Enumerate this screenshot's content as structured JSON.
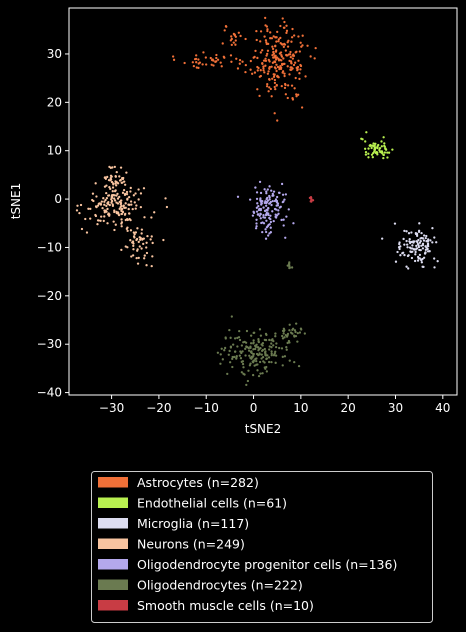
{
  "chart_data": {
    "type": "scatter",
    "xlabel": "tSNE2",
    "ylabel": "tSNE1",
    "xlim": [
      -39,
      43
    ],
    "ylim": [
      -40.5,
      39.5
    ],
    "xticks": [
      -30,
      -20,
      -10,
      0,
      10,
      20,
      30,
      40
    ],
    "yticks": [
      -40,
      -30,
      -20,
      -10,
      0,
      10,
      20,
      30
    ],
    "grid": false,
    "background": "#000000",
    "legend_position": "below",
    "series": [
      {
        "name": "Astrocytes (n=282)",
        "color": "#f07038",
        "n": 282,
        "clusters": [
          {
            "cx": 5.5,
            "cy": 28.5,
            "sx": 3.2,
            "sy": 3.8,
            "share": 0.8
          },
          {
            "cx": -8.5,
            "cy": 28.5,
            "sx": 3.5,
            "sy": 0.8,
            "share": 0.14
          },
          {
            "cx": -4.5,
            "cy": 33.5,
            "sx": 0.8,
            "sy": 1.2,
            "share": 0.06
          }
        ]
      },
      {
        "name": "Endothelial cells (n=61)",
        "color": "#b8f050",
        "n": 61,
        "clusters": [
          {
            "cx": 26.0,
            "cy": 10.3,
            "sx": 1.4,
            "sy": 1.0,
            "share": 1.0
          }
        ]
      },
      {
        "name": "Microglia (n=117)",
        "color": "#dcdcf0",
        "n": 117,
        "clusters": [
          {
            "cx": 34.5,
            "cy": -10.0,
            "sx": 2.2,
            "sy": 2.0,
            "share": 1.0
          }
        ]
      },
      {
        "name": "Neurons (n=249)",
        "color": "#f8c4a0",
        "n": 249,
        "clusters": [
          {
            "cx": -29.0,
            "cy": -1.5,
            "sx": 3.2,
            "sy": 2.3,
            "share": 0.62
          },
          {
            "cx": -29.5,
            "cy": 4.0,
            "sx": 1.2,
            "sy": 1.6,
            "share": 0.18
          },
          {
            "cx": -24.5,
            "cy": -9.5,
            "sx": 1.6,
            "sy": 1.8,
            "share": 0.2
          }
        ]
      },
      {
        "name": "Oligodendrocyte progenitor cells (n=136)",
        "color": "#b4a8ec",
        "n": 136,
        "clusters": [
          {
            "cx": 3.0,
            "cy": -2.5,
            "sx": 2.0,
            "sy": 2.5,
            "share": 1.0
          }
        ]
      },
      {
        "name": "Oligodendrocytes (n=222)",
        "color": "#6a7a50",
        "n": 222,
        "clusters": [
          {
            "cx": 0.5,
            "cy": -31.5,
            "sx": 3.8,
            "sy": 2.3,
            "share": 0.86
          },
          {
            "cx": 8.0,
            "cy": -27.5,
            "sx": 1.0,
            "sy": 0.7,
            "share": 0.1
          },
          {
            "cx": 7.6,
            "cy": -13.6,
            "sx": 0.2,
            "sy": 0.4,
            "share": 0.04
          }
        ]
      },
      {
        "name": "Smooth muscle cells (n=10)",
        "color": "#c83c44",
        "n": 10,
        "clusters": [
          {
            "cx": 12.2,
            "cy": 0.0,
            "sx": 0.15,
            "sy": 0.35,
            "share": 1.0
          }
        ]
      }
    ]
  }
}
